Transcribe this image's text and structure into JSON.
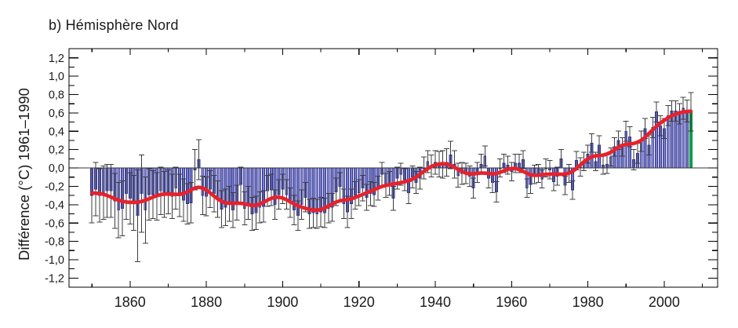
{
  "chart": {
    "title": "b) Hémisphère Nord",
    "y_axis_label": "Différence (°C) 1961–1990"
  },
  "colors": {
    "background": "#ffffff",
    "bar_fill": "#7b7ec6",
    "bar_edge": "#2e3094",
    "last_bar_fill": "#00a551",
    "last_bar_edge": "#008a43",
    "errorbar": "#3d3d3d",
    "smoothed_line": "#e8212b",
    "zero_line": "#333333",
    "axis": "#000000",
    "text": "#1a1a1a"
  },
  "chart_data": {
    "type": "bar",
    "description": "Annual surface temperature anomalies (bars) with uncertainty whiskers and a smoothed decadal curve, Northern Hemisphere, relative to 1961-1990",
    "title": "b) Hémisphère Nord",
    "xlabel": "",
    "ylabel": "Différence (°C) 1961–1990",
    "xlim": [
      1844,
      2014
    ],
    "ylim": [
      -1.3,
      1.3
    ],
    "grid": false,
    "legend": "none",
    "x_axis": {
      "major_ticks": [
        {
          "value": 1860,
          "label": "1860"
        },
        {
          "value": 1880,
          "label": "1880"
        },
        {
          "value": 1900,
          "label": "1900"
        },
        {
          "value": 1920,
          "label": "1920"
        },
        {
          "value": 1940,
          "label": "1940"
        },
        {
          "value": 1960,
          "label": "1960"
        },
        {
          "value": 1980,
          "label": "1980"
        },
        {
          "value": 2000,
          "label": "2000"
        }
      ],
      "minor_ticks": [
        1850,
        1870,
        1890,
        1910,
        1930,
        1950,
        1970,
        1990,
        2010
      ]
    },
    "y_axis": {
      "major_ticks": [
        {
          "value": 1.2,
          "label": "1,2"
        },
        {
          "value": 1.0,
          "label": "1,0"
        },
        {
          "value": 0.8,
          "label": "0,8"
        },
        {
          "value": 0.6,
          "label": "0,6"
        },
        {
          "value": 0.4,
          "label": "0,4"
        },
        {
          "value": 0.2,
          "label": "0,2"
        },
        {
          "value": 0.0,
          "label": "0,0"
        },
        {
          "value": -0.2,
          "label": "-0,2"
        },
        {
          "value": -0.4,
          "label": "-0,4"
        },
        {
          "value": -0.6,
          "label": "-0,6"
        },
        {
          "value": -0.8,
          "label": "-0,8"
        },
        {
          "value": -1.0,
          "label": "-1,0"
        },
        {
          "value": -1.2,
          "label": "-1,2"
        }
      ],
      "minor_ticks": [
        -1.1,
        -0.9,
        -0.7,
        -0.5,
        -0.3,
        -0.1,
        0.1,
        0.3,
        0.5,
        0.7,
        0.9,
        1.1
      ]
    },
    "series": {
      "years": {
        "start": 1850,
        "end": 2007,
        "step": 1
      },
      "annual_anomaly_degC": [
        -0.3,
        -0.23,
        -0.3,
        -0.27,
        -0.25,
        -0.25,
        -0.36,
        -0.46,
        -0.44,
        -0.28,
        -0.33,
        -0.38,
        -0.52,
        -0.28,
        -0.46,
        -0.29,
        -0.29,
        -0.31,
        -0.25,
        -0.29,
        -0.26,
        -0.31,
        -0.22,
        -0.3,
        -0.35,
        -0.39,
        -0.38,
        -0.02,
        0.09,
        -0.3,
        -0.31,
        -0.23,
        -0.28,
        -0.34,
        -0.45,
        -0.43,
        -0.39,
        -0.46,
        -0.38,
        -0.18,
        -0.44,
        -0.38,
        -0.5,
        -0.49,
        -0.43,
        -0.42,
        -0.25,
        -0.24,
        -0.4,
        -0.29,
        -0.23,
        -0.29,
        -0.38,
        -0.46,
        -0.52,
        -0.4,
        -0.32,
        -0.5,
        -0.49,
        -0.5,
        -0.48,
        -0.49,
        -0.44,
        -0.43,
        -0.26,
        -0.2,
        -0.39,
        -0.48,
        -0.39,
        -0.3,
        -0.27,
        -0.22,
        -0.32,
        -0.28,
        -0.29,
        -0.22,
        -0.07,
        -0.19,
        -0.17,
        -0.33,
        -0.11,
        -0.07,
        -0.13,
        -0.27,
        -0.1,
        -0.16,
        -0.11,
        0.0,
        0.07,
        0.02,
        0.06,
        0.04,
        0.04,
        0.06,
        0.14,
        0.04,
        -0.08,
        -0.06,
        -0.06,
        -0.09,
        -0.22,
        -0.05,
        0.04,
        0.13,
        -0.11,
        -0.16,
        -0.26,
        0.0,
        0.05,
        0.03,
        -0.04,
        0.05,
        0.05,
        0.09,
        -0.22,
        -0.18,
        -0.07,
        -0.06,
        -0.12,
        0.0,
        -0.02,
        -0.15,
        -0.09,
        0.1,
        -0.19,
        -0.06,
        -0.24,
        0.08,
        0.01,
        0.07,
        0.15,
        0.27,
        0.07,
        0.25,
        0.03,
        0.04,
        0.12,
        0.23,
        0.3,
        0.23,
        0.4,
        0.34,
        0.09,
        0.16,
        0.29,
        0.43,
        0.25,
        0.44,
        0.61,
        0.46,
        0.43,
        0.57,
        0.62,
        0.62,
        0.59,
        0.65,
        0.62,
        0.61
      ],
      "uncertainty_half_range_degC": [
        0.3,
        0.29,
        0.29,
        0.29,
        0.29,
        0.29,
        0.3,
        0.3,
        0.3,
        0.28,
        0.28,
        0.3,
        0.5,
        0.42,
        0.36,
        0.28,
        0.26,
        0.26,
        0.26,
        0.25,
        0.24,
        0.24,
        0.23,
        0.23,
        0.23,
        0.22,
        0.22,
        0.22,
        0.22,
        0.21,
        0.21,
        0.2,
        0.2,
        0.2,
        0.2,
        0.2,
        0.19,
        0.19,
        0.19,
        0.19,
        0.18,
        0.18,
        0.18,
        0.18,
        0.17,
        0.17,
        0.17,
        0.17,
        0.16,
        0.16,
        0.16,
        0.16,
        0.16,
        0.16,
        0.16,
        0.16,
        0.16,
        0.16,
        0.16,
        0.16,
        0.16,
        0.16,
        0.16,
        0.15,
        0.15,
        0.15,
        0.16,
        0.17,
        0.16,
        0.15,
        0.14,
        0.14,
        0.14,
        0.13,
        0.13,
        0.13,
        0.13,
        0.13,
        0.13,
        0.13,
        0.12,
        0.12,
        0.12,
        0.12,
        0.12,
        0.12,
        0.12,
        0.12,
        0.12,
        0.12,
        0.13,
        0.14,
        0.15,
        0.15,
        0.15,
        0.15,
        0.13,
        0.12,
        0.11,
        0.11,
        0.11,
        0.11,
        0.11,
        0.11,
        0.11,
        0.11,
        0.11,
        0.1,
        0.1,
        0.1,
        0.1,
        0.1,
        0.1,
        0.1,
        0.1,
        0.1,
        0.1,
        0.1,
        0.1,
        0.1,
        0.1,
        0.1,
        0.1,
        0.1,
        0.1,
        0.1,
        0.1,
        0.1,
        0.1,
        0.1,
        0.1,
        0.1,
        0.1,
        0.1,
        0.1,
        0.1,
        0.1,
        0.1,
        0.1,
        0.1,
        0.11,
        0.11,
        0.11,
        0.11,
        0.11,
        0.11,
        0.11,
        0.11,
        0.11,
        0.11,
        0.11,
        0.11,
        0.11,
        0.11,
        0.11,
        0.12,
        0.12,
        0.21
      ],
      "last_year_partial": 2007,
      "smoothed_line": "13-year smoothed curve of annual values (red)"
    }
  }
}
